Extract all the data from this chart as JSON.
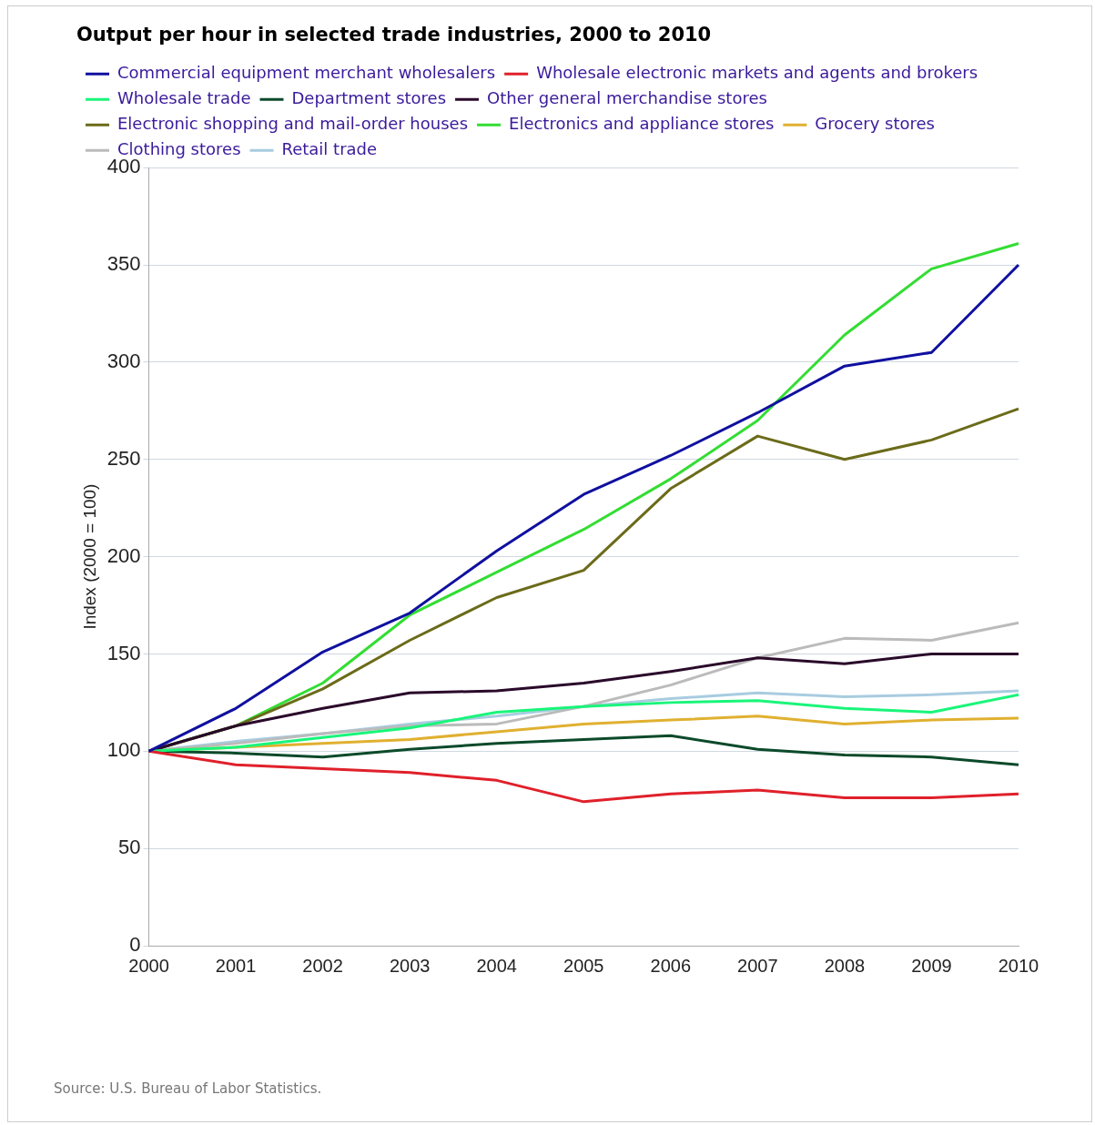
{
  "chart_data": {
    "type": "line",
    "title": "Output per hour in selected trade industries, 2000 to 2010",
    "ylabel": "Index (2000 = 100)",
    "categories": [
      "2000",
      "2001",
      "2002",
      "2003",
      "2004",
      "2005",
      "2006",
      "2007",
      "2008",
      "2009",
      "2010"
    ],
    "series": [
      {
        "name": "Commercial equipment merchant wholesalers",
        "color": "#1010a0",
        "values": [
          100,
          122,
          151,
          171,
          203,
          232,
          252,
          274,
          298,
          305,
          350
        ]
      },
      {
        "name": "Wholesale electronic markets and agents and brokers",
        "color": "#e0202a",
        "values": [
          100,
          93,
          91,
          89,
          85,
          74,
          78,
          80,
          76,
          76,
          78
        ]
      },
      {
        "name": "Wholesale trade",
        "color": "#19f57a",
        "values": [
          100,
          102,
          107,
          112,
          120,
          123,
          125,
          126,
          122,
          120,
          129
        ]
      },
      {
        "name": "Department stores",
        "color": "#0b4a2a",
        "values": [
          100,
          99,
          97,
          101,
          104,
          106,
          108,
          101,
          98,
          97,
          93
        ]
      },
      {
        "name": "Other general merchandise stores",
        "color": "#2a0a2a",
        "values": [
          100,
          113,
          122,
          130,
          131,
          135,
          141,
          148,
          145,
          150,
          150
        ]
      },
      {
        "name": "Electronic shopping and mail-order houses",
        "color": "#6b6b1a",
        "values": [
          100,
          113,
          132,
          157,
          179,
          193,
          235,
          262,
          250,
          260,
          276
        ]
      },
      {
        "name": "Electronics and appliance stores",
        "color": "#33dd33",
        "values": [
          100,
          113,
          135,
          170,
          192,
          214,
          240,
          270,
          314,
          348,
          361
        ]
      },
      {
        "name": "Grocery stores",
        "color": "#e0b030",
        "values": [
          100,
          102,
          104,
          106,
          110,
          114,
          116,
          118,
          114,
          116,
          117
        ]
      },
      {
        "name": "Clothing stores",
        "color": "#bbbbbb",
        "values": [
          100,
          104,
          109,
          113,
          114,
          123,
          134,
          148,
          158,
          157,
          166
        ]
      },
      {
        "name": "Retail trade",
        "color": "#a8cce0",
        "values": [
          100,
          105,
          109,
          114,
          118,
          123,
          127,
          130,
          128,
          129,
          131
        ]
      }
    ],
    "ylim": [
      0,
      400
    ],
    "yticks": [
      0,
      50,
      100,
      150,
      200,
      250,
      300,
      350,
      400
    ],
    "grid": "y",
    "legend": "top left",
    "marker": "none",
    "line_style": "solid",
    "annotations": [
      "Source: U.S. Bureau of Labor Statistics."
    ]
  }
}
